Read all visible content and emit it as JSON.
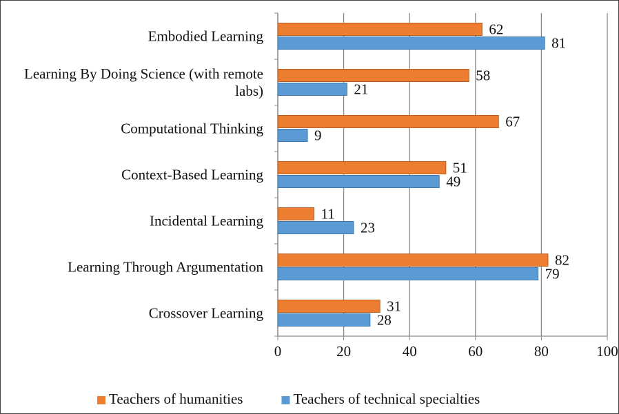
{
  "chart_data": {
    "type": "hbar",
    "categories": [
      "Embodied Learning",
      "Learning By Doing Science (with remote labs)",
      "Computational Thinking",
      "Context-Based Learning",
      "Incidental Learning",
      "Learning Through Argumentation",
      "Crossover Learning"
    ],
    "series": [
      {
        "name": "Teachers of humanities",
        "color": "#ED7D31",
        "values": [
          62,
          58,
          67,
          51,
          11,
          82,
          31
        ]
      },
      {
        "name": "Teachers of technical specialties",
        "color": "#5B9BD5",
        "values": [
          81,
          21,
          9,
          49,
          23,
          79,
          28
        ]
      }
    ],
    "xlim": [
      0,
      100
    ],
    "xticks": [
      0,
      20,
      40,
      60,
      80,
      100
    ],
    "grid": true,
    "legend": "bottom"
  }
}
